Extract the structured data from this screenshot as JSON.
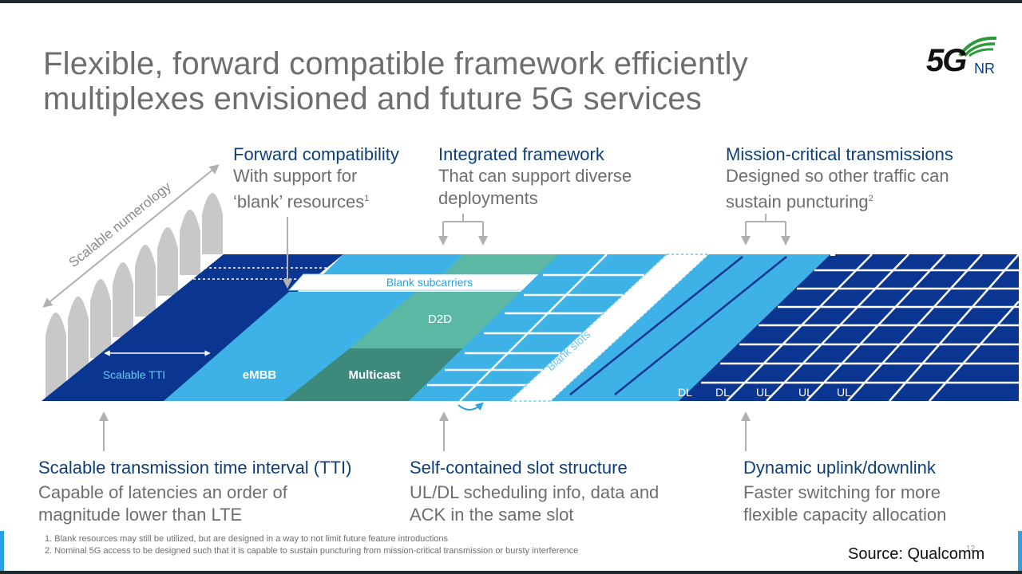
{
  "title_line1": "Flexible, forward compatible framework efficiently",
  "title_line2": "multiplexes envisioned and future 5G services",
  "logo": {
    "big": "5G",
    "small": "NR"
  },
  "features": {
    "forward": {
      "heading": "Forward compatibility",
      "line1": "With support for",
      "line2": "‘blank’ resources",
      "ref": "1"
    },
    "integrated": {
      "heading": "Integrated framework",
      "line1": "That can support diverse",
      "line2": "deployments"
    },
    "mission": {
      "heading": "Mission-critical transmissions",
      "line1": "Designed so other traffic can",
      "line2": "sustain puncturing",
      "ref": "2"
    },
    "tti": {
      "heading": "Scalable transmission time interval (TTI)",
      "line1": "Capable of latencies an order of",
      "line2": "magnitude lower than LTE"
    },
    "slot": {
      "heading": "Self-contained slot structure",
      "line1": "UL/DL scheduling info, data and",
      "line2": "ACK in the same slot"
    },
    "dynamic": {
      "heading": "Dynamic uplink/downlink",
      "line1": "Faster switching for more",
      "line2": "flexible capacity allocation"
    }
  },
  "diagram": {
    "scalable_numerology": "Scalable numerology",
    "scalable_tti": "Scalable TTI",
    "embb": "eMBB",
    "multicast": "Multicast",
    "d2d": "D2D",
    "blank_subcarriers": "Blank subcarriers",
    "blank_slots": "Blank slots",
    "dl1": "DL",
    "dl2": "DL",
    "ul1": "UL",
    "ul2": "UL",
    "ul3": "UL"
  },
  "footnotes": {
    "f1": "1. Blank resources may still be utilized, but are designed in a way to not limit future feature introductions",
    "f2": "2. Nominal 5G access to be designed such that it is capable to sustain puncturing from mission-critical  transmission or bursty interference"
  },
  "source": "Source: Qualcomm",
  "page_number": "12",
  "colors": {
    "dark_blue": "#0a3591",
    "light_blue": "#3eb1e6",
    "teal": "#5bb8a5",
    "dark_teal": "#3d8a7c",
    "title_gray": "#6d6e71",
    "heading_blue": "#0d3f78"
  }
}
